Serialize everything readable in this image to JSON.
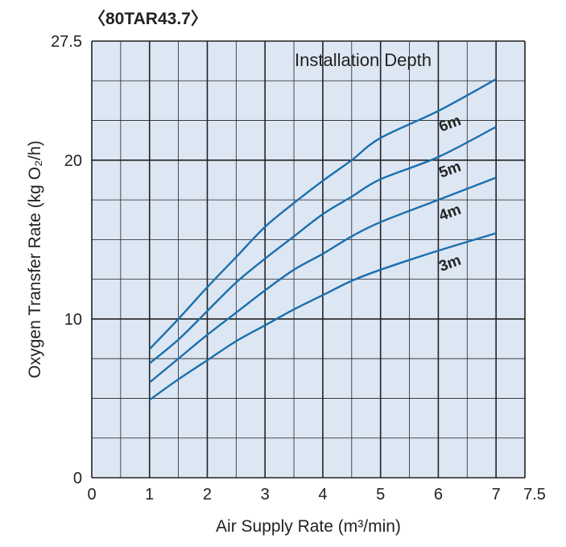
{
  "chart_data": {
    "type": "line",
    "title": "〈80TAR43.7〉",
    "xlabel": "Air Supply Rate  (m³/min)",
    "ylabel": "Oxygen Transfer Rate (kg O₂/h)",
    "legend_title": "Installation Depth",
    "xlim": [
      0,
      7.5
    ],
    "ylim": [
      0,
      27.5
    ],
    "x_ticks": [
      "0",
      "1",
      "2",
      "3",
      "4",
      "5",
      "6",
      "7",
      "7.5"
    ],
    "y_ticks": [
      "0",
      "10",
      "20",
      "27.5"
    ],
    "grid": true,
    "x": [
      1,
      1.5,
      2,
      2.5,
      3,
      3.5,
      4,
      4.5,
      5,
      6,
      7
    ],
    "series": [
      {
        "name": "6m",
        "values": [
          8.1,
          10.0,
          12.0,
          13.9,
          15.8,
          17.3,
          18.7,
          20.0,
          21.4,
          23.1,
          25.1
        ]
      },
      {
        "name": "5m",
        "values": [
          7.2,
          8.7,
          10.5,
          12.3,
          13.8,
          15.2,
          16.6,
          17.7,
          18.8,
          20.2,
          22.1
        ]
      },
      {
        "name": "4m",
        "values": [
          6.0,
          7.5,
          9.0,
          10.4,
          11.8,
          13.1,
          14.1,
          15.2,
          16.1,
          17.5,
          18.9
        ]
      },
      {
        "name": "3m",
        "values": [
          4.9,
          6.2,
          7.4,
          8.6,
          9.6,
          10.6,
          11.5,
          12.4,
          13.1,
          14.3,
          15.4
        ]
      }
    ],
    "colors": {
      "line": "#1a6fae",
      "background": "#dde6f3",
      "grid": "#222222"
    }
  }
}
